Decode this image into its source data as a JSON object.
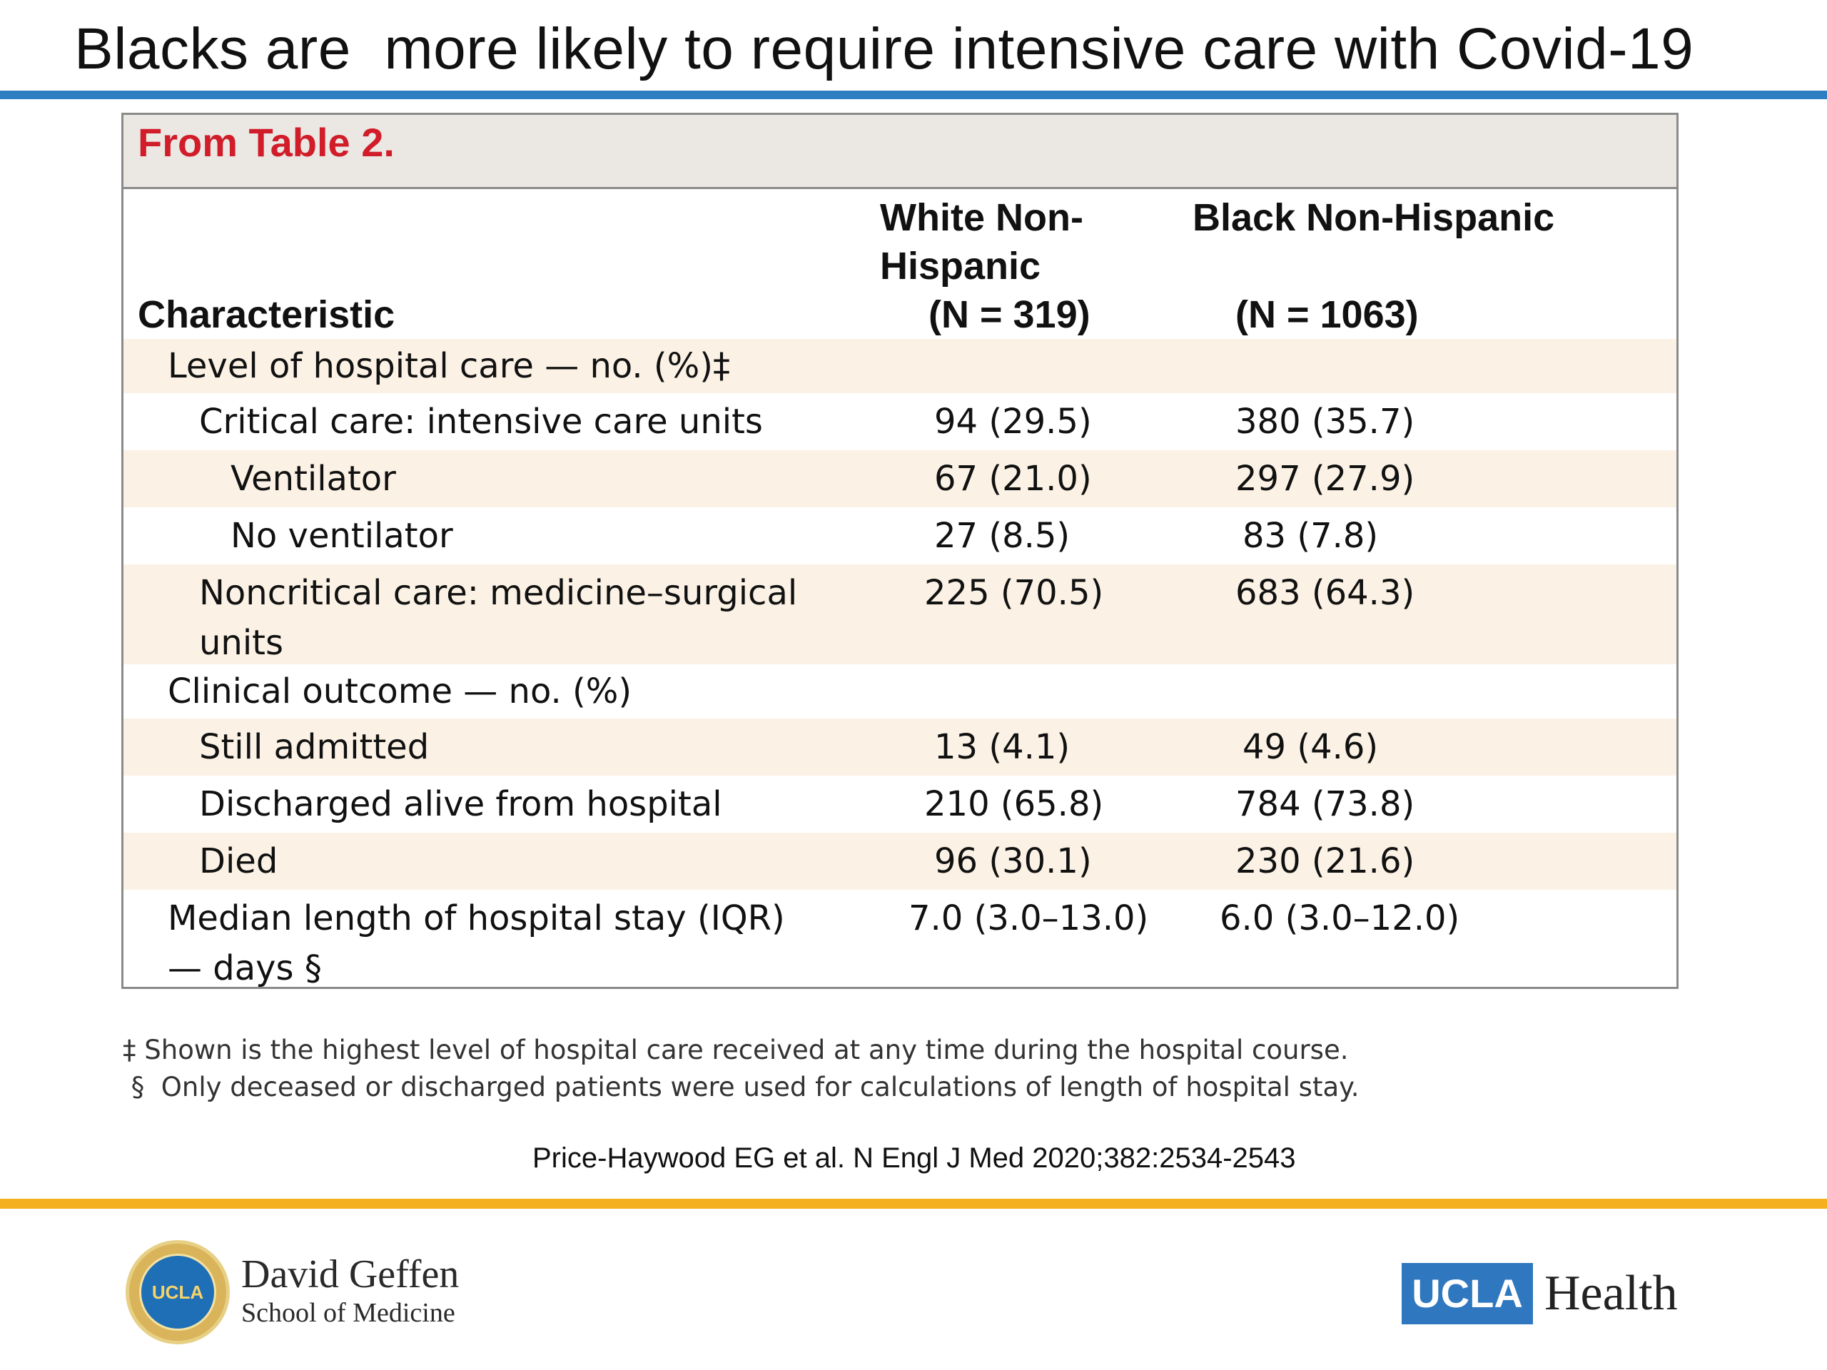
{
  "slide": {
    "title": "Blacks are  more likely to require intensive care with Covid-19",
    "colors": {
      "title_rule": "#2f7ec1",
      "footer_rule": "#f4b01e",
      "caption_text": "#d11d2a",
      "row_shade": "#fbf2e5"
    }
  },
  "table": {
    "caption": "From Table 2.",
    "headers": {
      "characteristic": "Characteristic",
      "white_line1": "White Non-",
      "white_line2": "Hispanic",
      "white_n": "(N = 319)",
      "black_line1": "Black Non-Hispanic",
      "black_n": "(N = 1063)"
    },
    "rows": [
      {
        "label": "Level of hospital care — no. (%)‡",
        "white": "",
        "black": ""
      },
      {
        "label": "Critical care: intensive care units",
        "white": "94 (29.5)",
        "black": "380 (35.7)"
      },
      {
        "label": "Ventilator",
        "white": "67 (21.0)",
        "black": "297 (27.9)"
      },
      {
        "label": "No ventilator",
        "white": "27 (8.5)",
        "black": "83 (7.8)"
      },
      {
        "label": "Noncritical care: medicine–surgical units",
        "white": "225 (70.5)",
        "black": "683 (64.3)"
      },
      {
        "label": "Clinical outcome — no. (%)",
        "white": "",
        "black": ""
      },
      {
        "label": "Still admitted",
        "white": "13 (4.1)",
        "black": "49 (4.6)"
      },
      {
        "label": "Discharged alive from hospital",
        "white": "210 (65.8)",
        "black": "784 (73.8)"
      },
      {
        "label": "Died",
        "white": "96 (30.1)",
        "black": "230 (21.6)"
      },
      {
        "label": "Median length of hospital stay (IQR) — days §",
        "white": "7.0 (3.0–13.0)",
        "black": "6.0 (3.0–12.0)"
      }
    ]
  },
  "footnotes": {
    "double_dagger": "‡ Shown is the highest level of hospital care received at any time during the hospital course.",
    "section": " §  Only deceased or discharged patients were used for calculations of length of hospital stay."
  },
  "citation": "Price-Haywood EG et al. N Engl J Med 2020;382:2534-2543",
  "footer": {
    "seal_text": "UCLA",
    "dg_name": "David Geffen",
    "dg_sub": "School of Medicine",
    "ucla_box": "UCLA",
    "ucla_health": "Health"
  }
}
